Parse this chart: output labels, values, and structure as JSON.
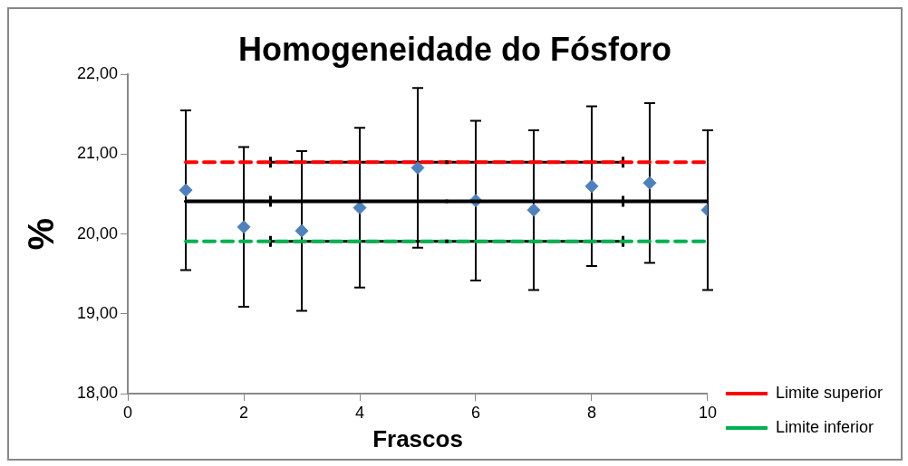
{
  "chart_data": {
    "type": "scatter",
    "title": "Homogeneidade do Fósforo",
    "xlabel": "Frascos",
    "ylabel": "%",
    "xlim": [
      0,
      10
    ],
    "xticks": [
      0,
      2,
      4,
      6,
      8,
      10
    ],
    "ylim": [
      18,
      22
    ],
    "yticks": [
      {
        "value": 18,
        "label": "18,00"
      },
      {
        "value": 19,
        "label": "19,00"
      },
      {
        "value": 20,
        "label": "20,00"
      },
      {
        "value": 21,
        "label": "21,00"
      },
      {
        "value": 22,
        "label": "22,00"
      }
    ],
    "grid": false,
    "legend": "bottom right",
    "series": [
      {
        "type": "scatter",
        "color": "#4f81bd",
        "marker": "diamond",
        "x": [
          1,
          2,
          3,
          4,
          5,
          6,
          7,
          8,
          9,
          10
        ],
        "values": [
          20.55,
          20.09,
          20.04,
          20.33,
          20.83,
          20.42,
          20.3,
          20.6,
          20.64,
          20.3
        ],
        "errors": [
          1,
          1,
          1,
          1,
          1,
          1,
          1,
          1,
          1,
          1
        ]
      },
      {
        "type": "line",
        "name": "Limite superior",
        "color": "#ff0000",
        "line_style": "dashed",
        "marker": "none",
        "x": [
          1,
          10
        ],
        "values": [
          20.9,
          20.9
        ]
      },
      {
        "type": "line",
        "name": "Limite inferior",
        "color": "#00b050",
        "line_style": "dashed",
        "marker": "none",
        "x": [
          1,
          10
        ],
        "values": [
          19.91,
          19.91
        ]
      },
      {
        "type": "line",
        "color": "#000000",
        "line_style": "solid",
        "marker": "none",
        "x": [
          1,
          10
        ],
        "values": [
          20.41,
          20.41
        ]
      },
      {
        "type": "scatter",
        "color": "#000000",
        "marker": "square",
        "x": [
          5.5,
          5.5,
          5.5
        ],
        "values": [
          20.9,
          20.41,
          19.91
        ],
        "xerrors": [
          3.04,
          3.04,
          3.04
        ]
      }
    ]
  }
}
